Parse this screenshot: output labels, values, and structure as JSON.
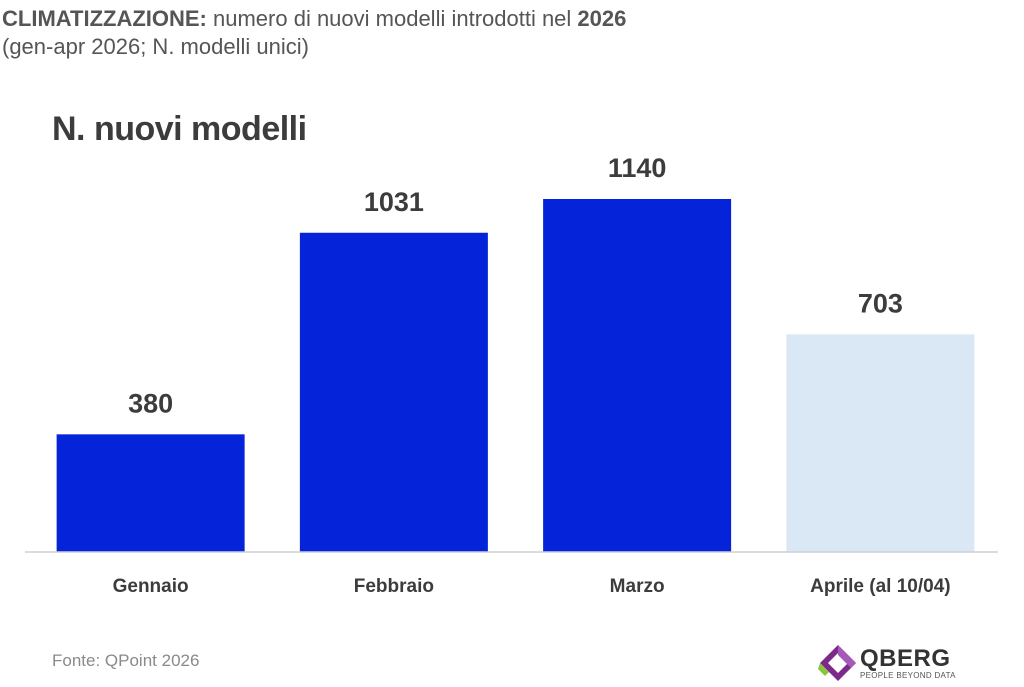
{
  "header": {
    "title_bold": "CLIMATIZZAZIONE:",
    "title_rest": " numero di nuovi modelli introdotti nel ",
    "title_year": "2026",
    "subtitle": "(gen-apr 2026; N. modelli unici)"
  },
  "chart_data": {
    "type": "bar",
    "title": "N. nuovi modelli",
    "categories": [
      "Gennaio",
      "Febbraio",
      "Marzo",
      "Aprile (al 10/04)"
    ],
    "values": [
      380,
      1031,
      1140,
      703
    ],
    "data_labels": [
      "380",
      "1031",
      "1140",
      "703"
    ],
    "ylim": [
      0,
      1250
    ],
    "grid": false,
    "colors": [
      "#0524d9",
      "#0524d9",
      "#0524d9",
      "#dae8f6"
    ]
  },
  "footer": {
    "source": "Fonte: QPoint 2026",
    "logo_name": "QBERG",
    "logo_tagline": "PEOPLE BEYOND DATA",
    "logo_icon": "qberg-diamond-logo-icon"
  }
}
